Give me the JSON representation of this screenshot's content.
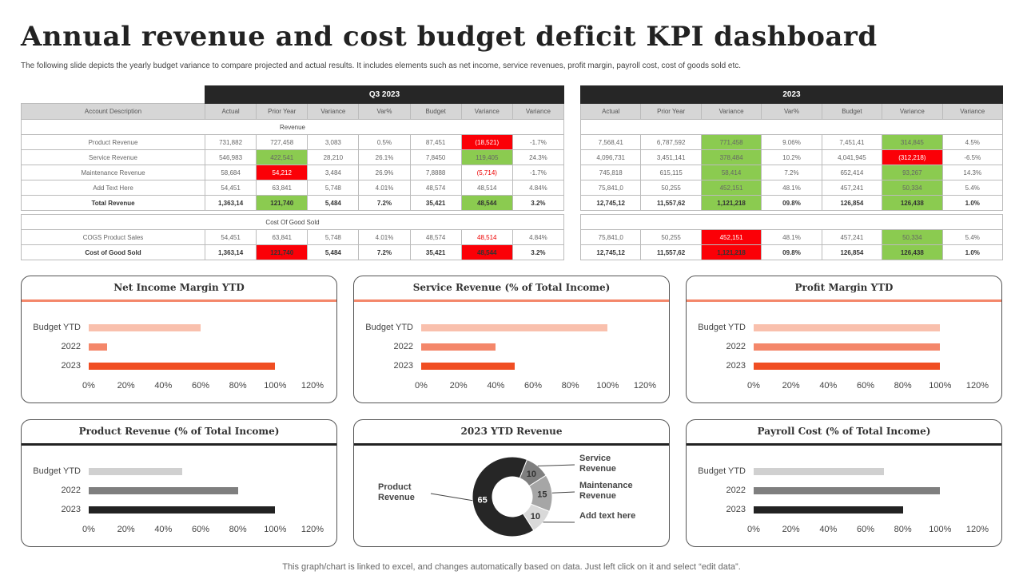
{
  "title": "Annual revenue and cost budget deficit KPI dashboard",
  "subtitle": "The following slide depicts the yearly budget variance to compare projected and actual results. It includes elements such as net income, service revenues, profit margin, payroll cost, cost of goods sold etc.",
  "footer": "This graph/chart is linked to excel, and changes automatically based on data. Just left click on it and select “edit data”.",
  "colors": {
    "green": "#8bcb50",
    "red": "#fb0007",
    "header": "#262626",
    "bar_light": "#f9c0ad",
    "bar_mid": "#f4876a",
    "bar_dark": "#f04e23",
    "gray_light": "#d0d0d0",
    "gray_mid": "#7f7f7f",
    "gray_dark": "#222222"
  },
  "q3_table": {
    "period": "Q3 2023",
    "columns": [
      "Account Description",
      "Actual",
      "Prior Year",
      "Variance",
      "Var%",
      "Budget",
      "Variance",
      "Variance"
    ],
    "revenue_section": "Revenue",
    "revenue_rows": [
      {
        "cells": [
          "Product  Revenue",
          "731,882",
          "727,458",
          "3,083",
          "0.5%",
          "87,451",
          "(18,521)",
          "-1.7%"
        ],
        "fmt": [
          "",
          "",
          "",
          "",
          "",
          "",
          "r",
          ""
        ]
      },
      {
        "cells": [
          "Service Revenue",
          "546,983",
          "422,541",
          "28,210",
          "26.1%",
          "7,8450",
          "119,405",
          "24.3%"
        ],
        "fmt": [
          "",
          "",
          "g",
          "",
          "",
          "",
          "g",
          ""
        ]
      },
      {
        "cells": [
          "Maintenance  Revenue",
          "58,684",
          "54,212",
          "3,484",
          "26.9%",
          "7,8888",
          "(5,714)",
          "-1.7%"
        ],
        "fmt": [
          "",
          "",
          "r",
          "",
          "",
          "",
          "rt",
          ""
        ]
      },
      {
        "cells": [
          "Add Text Here",
          "54,451",
          "63,841",
          "5,748",
          "4.01%",
          "48,574",
          "48,514",
          "4.84%"
        ],
        "fmt": [
          "",
          "",
          "",
          "",
          "",
          "",
          "",
          ""
        ]
      },
      {
        "cells": [
          "Total Revenue",
          "1,363,14",
          "121,740",
          "5,484",
          "7.2%",
          "35,421",
          "48,544",
          "3.2%"
        ],
        "fmt": [
          "",
          "",
          "g",
          "",
          "",
          "",
          "g",
          ""
        ],
        "bold": true
      }
    ],
    "cogs_section": "Cost Of Good Sold",
    "cogs_rows": [
      {
        "cells": [
          "COGS Product Sales",
          "54,451",
          "63,841",
          "5,748",
          "4.01%",
          "48,574",
          "48,514",
          "4.84%"
        ],
        "fmt": [
          "",
          "",
          "",
          "",
          "",
          "",
          "rt",
          ""
        ]
      },
      {
        "cells": [
          "Cost of Good Sold",
          "1,363,14",
          "121,740",
          "5,484",
          "7.2%",
          "35,421",
          "48,544",
          "3.2%"
        ],
        "fmt": [
          "",
          "",
          "r",
          "",
          "",
          "",
          "r",
          ""
        ],
        "bold": true
      }
    ]
  },
  "y_table": {
    "period": "2023",
    "columns": [
      "Actual",
      "Prior Year",
      "Variance",
      "Var%",
      "Budget",
      "Variance",
      "Variance"
    ],
    "revenue_rows": [
      {
        "cells": [
          "7,568,41",
          "6,787,592",
          "771,458",
          "9.06%",
          "7,451,41",
          "314,845",
          "4.5%"
        ],
        "fmt": [
          "",
          "",
          "g",
          "",
          "",
          "g",
          ""
        ]
      },
      {
        "cells": [
          "4,096,731",
          "3,451,141",
          "378,484",
          "10.2%",
          "4,041,945",
          "(312,218)",
          "-6.5%"
        ],
        "fmt": [
          "",
          "",
          "g",
          "",
          "",
          "r",
          ""
        ]
      },
      {
        "cells": [
          "745,818",
          "615,115",
          "58,414",
          "7.2%",
          "652,414",
          "93,267",
          "14.3%"
        ],
        "fmt": [
          "",
          "",
          "g",
          "",
          "",
          "g",
          ""
        ]
      },
      {
        "cells": [
          "75,841,0",
          "50,255",
          "452,151",
          "48.1%",
          "457,241",
          "50,334",
          "5.4%"
        ],
        "fmt": [
          "",
          "",
          "g",
          "",
          "",
          "g",
          ""
        ]
      },
      {
        "cells": [
          "12,745,12",
          "11,557,62",
          "1,121,218",
          "09.8%",
          "126,854",
          "126,438",
          "1.0%"
        ],
        "fmt": [
          "",
          "",
          "g",
          "",
          "",
          "g",
          ""
        ],
        "bold": true
      }
    ],
    "cogs_rows": [
      {
        "cells": [
          "75,841,0",
          "50,255",
          "452,151",
          "48.1%",
          "457,241",
          "50,334",
          "5.4%"
        ],
        "fmt": [
          "",
          "",
          "r",
          "",
          "",
          "g",
          ""
        ]
      },
      {
        "cells": [
          "12,745,12",
          "11,557,62",
          "1,121,218",
          "09.8%",
          "126,854",
          "126,438",
          "1.0%"
        ],
        "fmt": [
          "",
          "",
          "r",
          "",
          "",
          "g",
          ""
        ],
        "bold": true
      }
    ]
  },
  "chart_data": [
    {
      "type": "bar",
      "orientation": "horizontal",
      "title": "Net Income  Margin YTD",
      "categories": [
        "Budget YTD",
        "2022",
        "2023"
      ],
      "values": [
        60,
        10,
        100
      ],
      "xlim": [
        0,
        120
      ],
      "ticks": [
        "0%",
        "20%",
        "40%",
        "60%",
        "80%",
        "100%",
        "120%"
      ],
      "colors": [
        "#f9c0ad",
        "#f4876a",
        "#f04e23"
      ],
      "accent": "#f4876a"
    },
    {
      "type": "bar",
      "orientation": "horizontal",
      "title": "Service Revenue (% of Total Income)",
      "categories": [
        "Budget YTD",
        "2022",
        "2023"
      ],
      "values": [
        100,
        40,
        50
      ],
      "xlim": [
        0,
        120
      ],
      "ticks": [
        "0%",
        "20%",
        "40%",
        "60%",
        "80%",
        "100%",
        "120%"
      ],
      "colors": [
        "#f9c0ad",
        "#f4876a",
        "#f04e23"
      ],
      "accent": "#f4876a"
    },
    {
      "type": "bar",
      "orientation": "horizontal",
      "title": "Profit Margin YTD",
      "categories": [
        "Budget YTD",
        "2022",
        "2023"
      ],
      "values": [
        100,
        100,
        100
      ],
      "xlim": [
        0,
        120
      ],
      "ticks": [
        "0%",
        "20%",
        "40%",
        "60%",
        "80%",
        "100%",
        "120%"
      ],
      "colors": [
        "#f9c0ad",
        "#f4876a",
        "#f04e23"
      ],
      "accent": "#f4876a"
    },
    {
      "type": "bar",
      "orientation": "horizontal",
      "title": "Product Revenue (% of Total Income)",
      "categories": [
        "Budget YTD",
        "2022",
        "2023"
      ],
      "values": [
        50,
        80,
        100
      ],
      "xlim": [
        0,
        120
      ],
      "ticks": [
        "0%",
        "20%",
        "40%",
        "60%",
        "80%",
        "100%",
        "120%"
      ],
      "colors": [
        "#d0d0d0",
        "#7f7f7f",
        "#222222"
      ],
      "accent": "#222222"
    },
    {
      "type": "pie",
      "donut": true,
      "title": "2023 YTD Revenue",
      "slices": [
        {
          "label": "Service Revenue",
          "value": 10,
          "color": "#7f7f7f"
        },
        {
          "label": "Maintenance Revenue",
          "value": 15,
          "color": "#a6a6a6"
        },
        {
          "label": "Add text here",
          "value": 10,
          "color": "#d9d9d9"
        },
        {
          "label": "Product Revenue",
          "value": 65,
          "color": "#262626"
        }
      ],
      "accent": "#222222"
    },
    {
      "type": "bar",
      "orientation": "horizontal",
      "title": "Payroll Cost (% of Total Income)",
      "categories": [
        "Budget YTD",
        "2022",
        "2023"
      ],
      "values": [
        70,
        100,
        80
      ],
      "xlim": [
        0,
        120
      ],
      "ticks": [
        "0%",
        "20%",
        "40%",
        "60%",
        "80%",
        "100%",
        "120%"
      ],
      "colors": [
        "#d0d0d0",
        "#7f7f7f",
        "#222222"
      ],
      "accent": "#222222"
    }
  ]
}
